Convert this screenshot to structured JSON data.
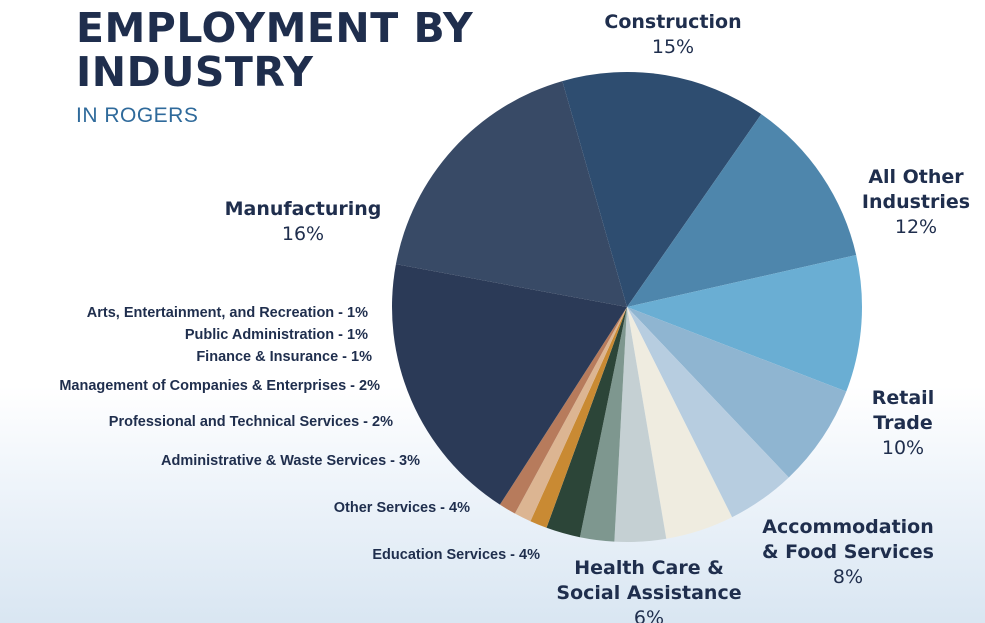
{
  "header": {
    "title_line1": "EMPLOYMENT BY",
    "title_line2": "INDUSTRY",
    "subtitle": "IN ROGERS"
  },
  "chart_data": {
    "type": "pie",
    "title": "EMPLOYMENT BY INDUSTRY",
    "subtitle": "IN ROGERS",
    "start_angle_deg": -270,
    "direction": "clockwise",
    "slices": [
      {
        "name": "Construction",
        "display": "15%",
        "value": 15,
        "color": "#384a66"
      },
      {
        "name": "All Other Industries",
        "display": "12%",
        "value": 12,
        "color": "#2e4d70"
      },
      {
        "name": "Retail Trade",
        "display": "10%",
        "value": 10,
        "color": "#4e86ac"
      },
      {
        "name": "Accommodation & Food Services",
        "display": "8%",
        "value": 8,
        "color": "#6aaed3"
      },
      {
        "name": "Health Care & Social Assistance",
        "display": "6%",
        "value": 6,
        "color": "#8fb5d1"
      },
      {
        "name": "Education Services",
        "display": "4%",
        "value": 4,
        "color": "#b7cde0"
      },
      {
        "name": "Other Services",
        "display": "4%",
        "value": 4,
        "color": "#efece0"
      },
      {
        "name": "Administrative & Waste Services",
        "display": "3%",
        "value": 3,
        "color": "#c5d0d3"
      },
      {
        "name": "Professional and Technical Services",
        "display": "2%",
        "value": 2,
        "color": "#7e978f"
      },
      {
        "name": "Management of Companies & Enterprises",
        "display": "2%",
        "value": 2,
        "color": "#2c4538"
      },
      {
        "name": "Finance & Insurance",
        "display": "1%",
        "value": 1,
        "color": "#c98a33"
      },
      {
        "name": "Public Administration",
        "display": "1%",
        "value": 1,
        "color": "#dcb592"
      },
      {
        "name": "Arts, Entertainment, and Recreation",
        "display": "1%",
        "value": 1,
        "color": "#b77b5c"
      },
      {
        "name": "Manufacturing",
        "display": "16%",
        "value": 16,
        "color": "#2b3a57"
      }
    ]
  }
}
